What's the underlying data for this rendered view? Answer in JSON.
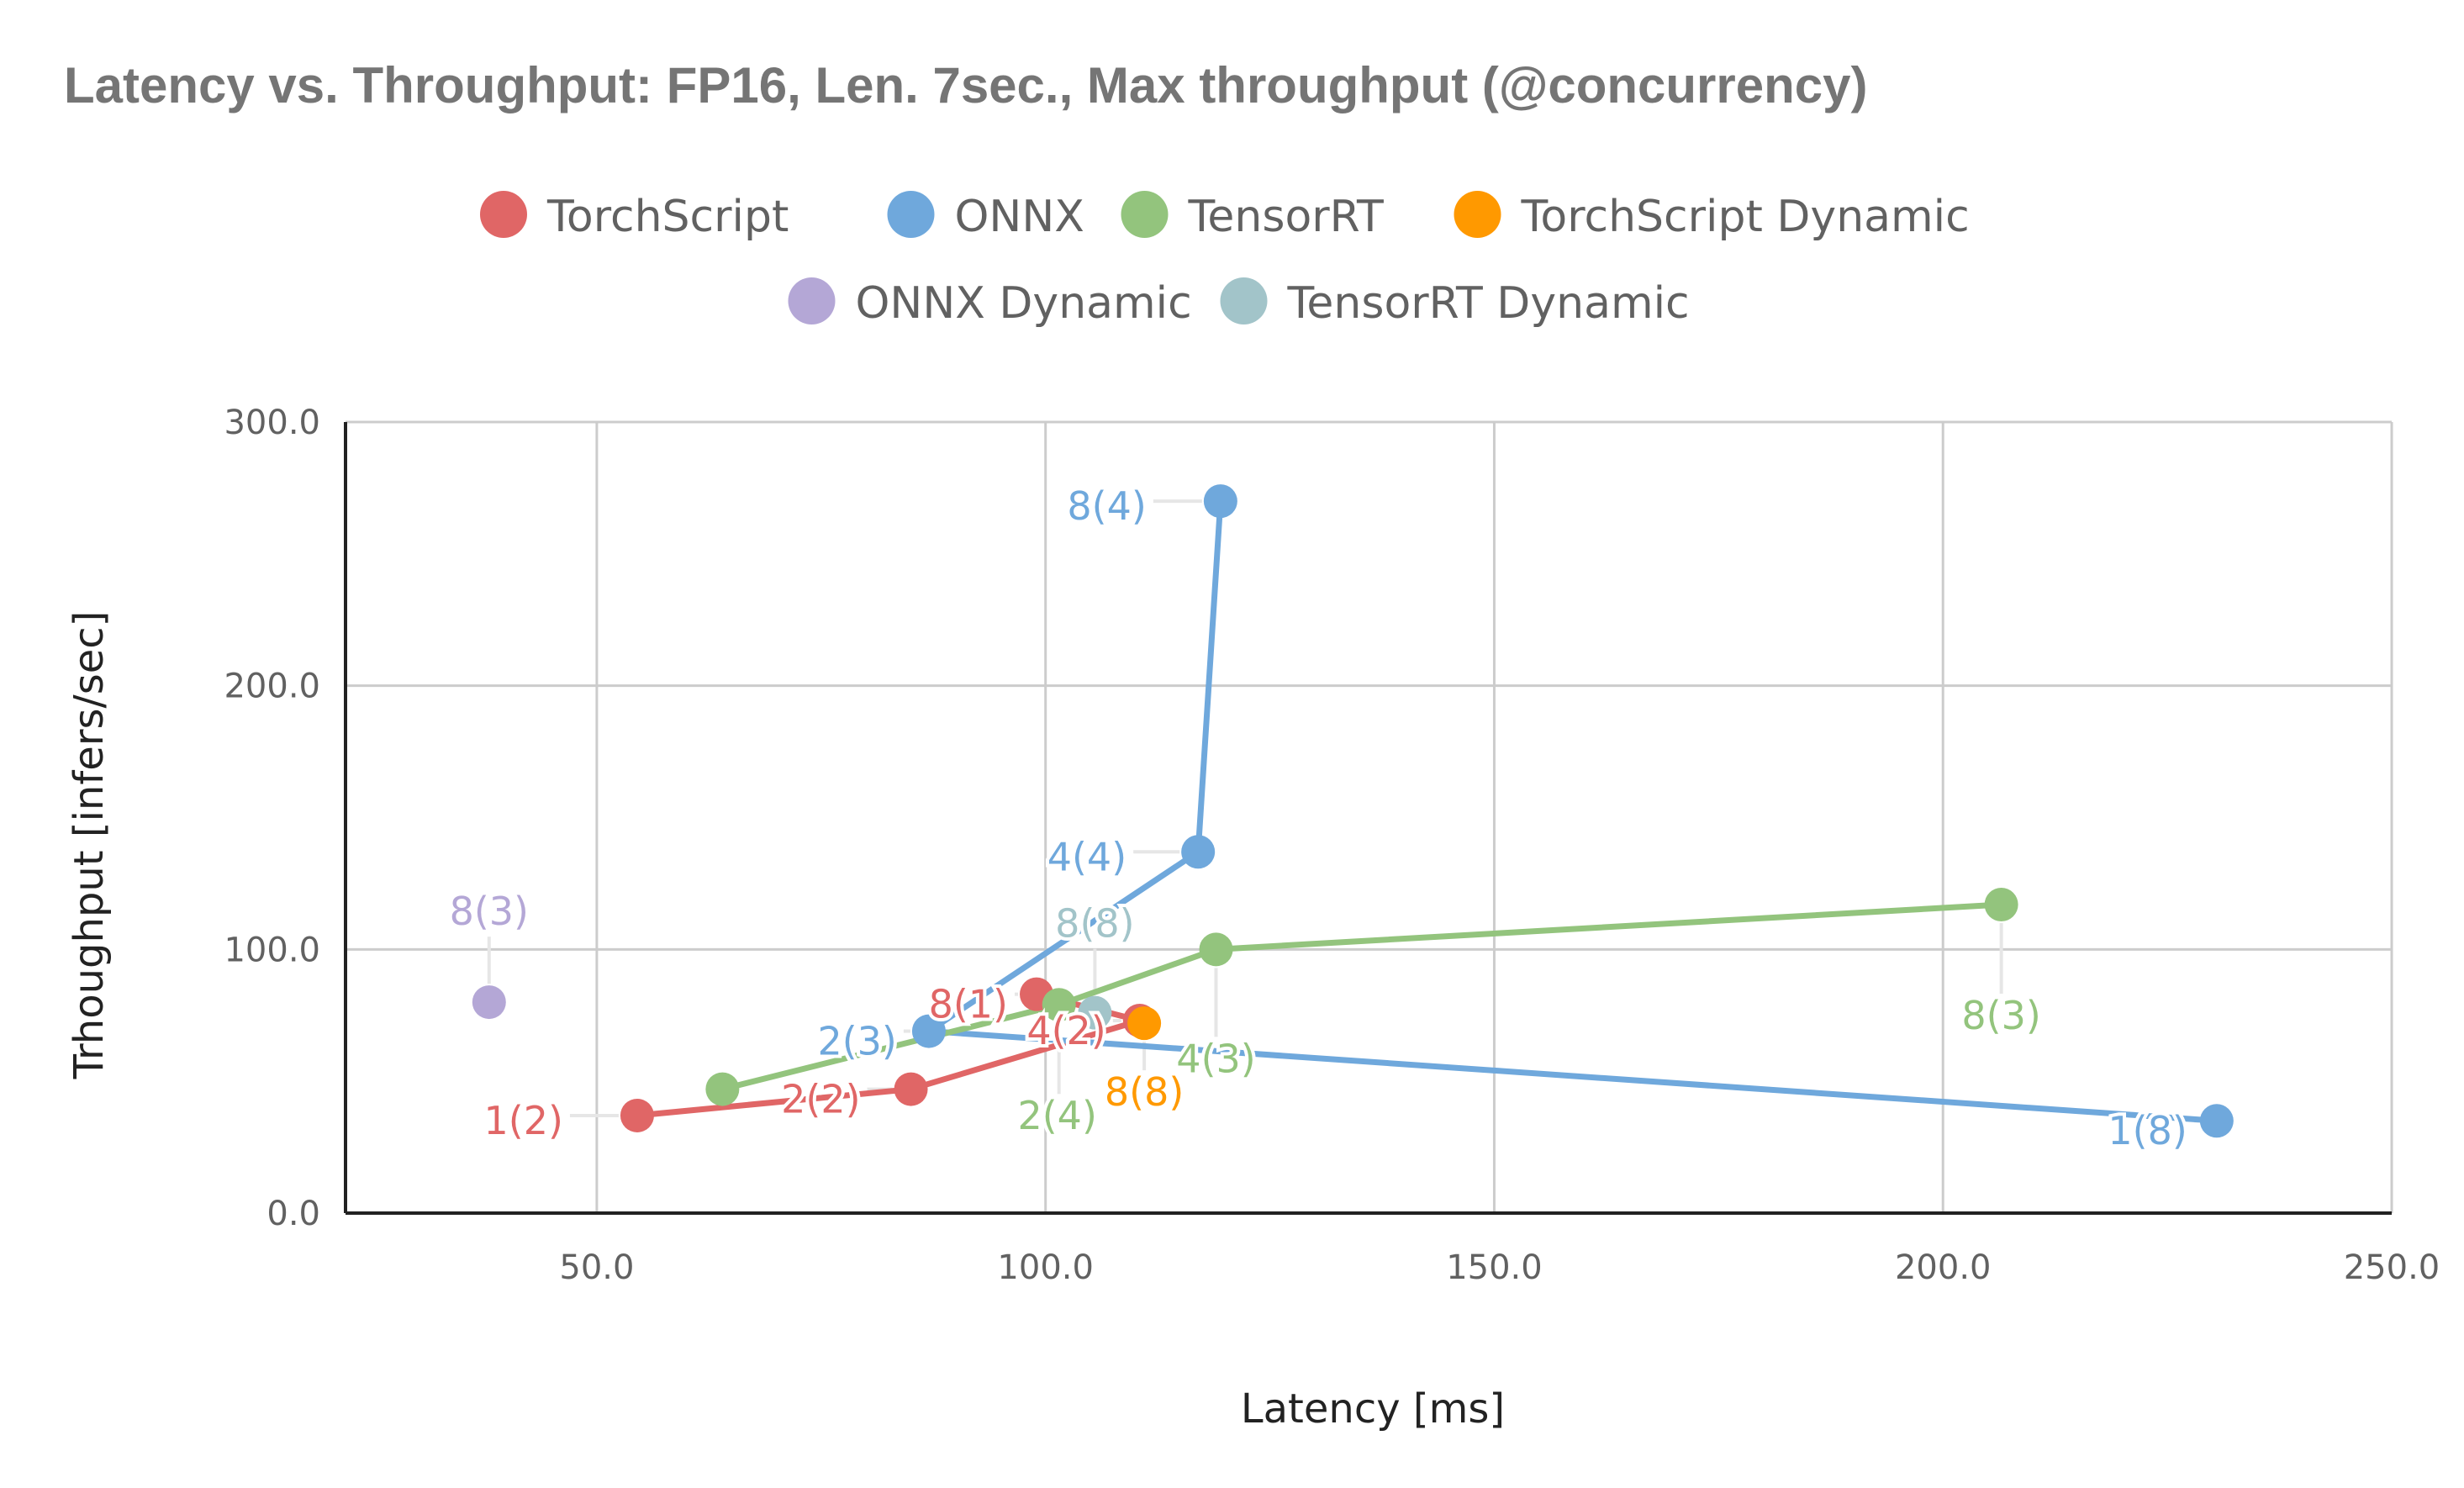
{
  "chart_data": {
    "type": "scatter",
    "title": "Latency vs. Throughput: FP16, Len. 7sec., Max throughput (@concurrency)",
    "xlabel": "Latency [ms]",
    "ylabel": "Trhoughput [infers/sec]",
    "xlim": [
      22,
      250
    ],
    "ylim": [
      0,
      300
    ],
    "x_ticks": [
      "50.0",
      "100.0",
      "150.0",
      "200.0",
      "250.0"
    ],
    "y_ticks": [
      "0.0",
      "100.0",
      "200.0",
      "300.0"
    ],
    "grid": true,
    "legend_position": "top",
    "series": [
      {
        "name": "TorchScript",
        "color": "#e06666",
        "connected": true,
        "points": [
          {
            "x": 54.5,
            "y": 37,
            "label": "1(2)"
          },
          {
            "x": 85,
            "y": 47,
            "label": "2(2)"
          },
          {
            "x": 110.5,
            "y": 73,
            "label": "4(2)"
          },
          {
            "x": 99,
            "y": 83,
            "label": "8(1)"
          }
        ]
      },
      {
        "name": "ONNX",
        "color": "#6fa8dc",
        "connected": true,
        "points": [
          {
            "x": 230.5,
            "y": 35,
            "label": "1(8)"
          },
          {
            "x": 87,
            "y": 69,
            "label": "2(3)"
          },
          {
            "x": 117,
            "y": 137,
            "label": "4(4)"
          },
          {
            "x": 119.5,
            "y": 270,
            "label": "8(4)"
          }
        ]
      },
      {
        "name": "TensorRT",
        "color": "#93c47d",
        "connected": true,
        "points": [
          {
            "x": 64,
            "y": 47,
            "label": ""
          },
          {
            "x": 101.5,
            "y": 79,
            "label": "2(4)"
          },
          {
            "x": 119,
            "y": 100,
            "label": "4(3)"
          },
          {
            "x": 206.5,
            "y": 117,
            "label": "8(3)"
          }
        ]
      },
      {
        "name": "TorchScript Dynamic",
        "color": "#ff9900",
        "connected": false,
        "points": [
          {
            "x": 111,
            "y": 72,
            "label": "8(8)"
          }
        ]
      },
      {
        "name": "ONNX Dynamic",
        "color": "#b4a7d6",
        "connected": false,
        "points": [
          {
            "x": 38,
            "y": 80,
            "label": "8(3)"
          }
        ]
      },
      {
        "name": "TensorRT Dynamic",
        "color": "#a2c4c9",
        "connected": false,
        "points": [
          {
            "x": 105.5,
            "y": 76,
            "label": "8(8)"
          }
        ]
      }
    ]
  }
}
